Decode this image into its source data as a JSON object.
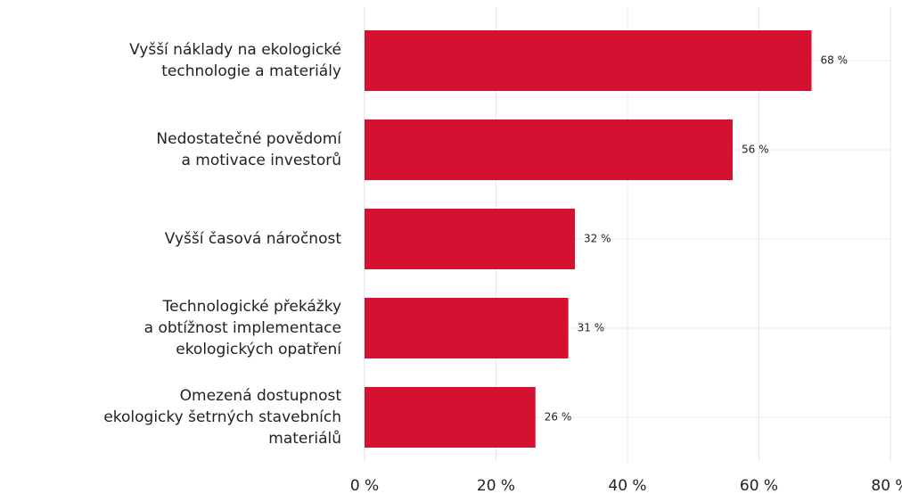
{
  "chart_data": {
    "type": "barh",
    "categories": [
      [
        "Vyšší náklady na ekologické",
        "technologie a materiály"
      ],
      [
        "Nedostatečné povědomí",
        "a motivace investorů"
      ],
      [
        "Vyšší časová náročnost"
      ],
      [
        "Technologické překážky",
        "a obtížnost implementace",
        "ekologických opatření"
      ],
      [
        "Omezená dostupnost",
        "ekologicky šetrných stavebních",
        "materiálů"
      ]
    ],
    "values": [
      68,
      56,
      32,
      31,
      26
    ],
    "value_labels": [
      "68 %",
      "56 %",
      "32 %",
      "31 %",
      "26 %"
    ],
    "color": "#d41130",
    "xlim": [
      0,
      80
    ],
    "xticks": [
      {
        "value": 0,
        "label": "0 %"
      },
      {
        "value": 20,
        "label": "20 %"
      },
      {
        "value": 40,
        "label": "40 %"
      },
      {
        "value": 60,
        "label": "60 %"
      },
      {
        "value": 80,
        "label": "80 %"
      }
    ],
    "grid": true
  }
}
